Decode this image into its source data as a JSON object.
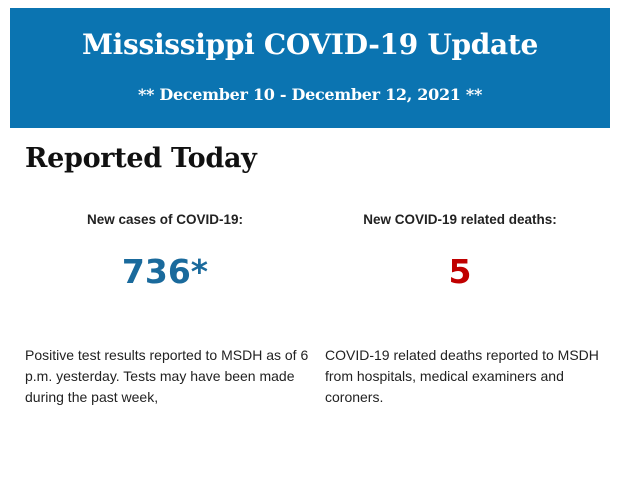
{
  "banner": {
    "title": "Mississippi COVID-19 Update",
    "subtitle": "** December 10 - December 12, 2021 **",
    "background_color": "#0b74b1"
  },
  "section_heading": "Reported Today",
  "cases": {
    "label": "New cases of COVID-19:",
    "value": "736*",
    "color": "#1a6a9c",
    "description": "Positive test results reported to MSDH as of 6 p.m. yesterday. Tests may have been made during the past week,"
  },
  "deaths": {
    "label": "New COVID-19 related deaths:",
    "value": "5",
    "color": "#c00000",
    "description": "COVID-19 related deaths reported to MSDH from hospitals, medical examiners and coroners."
  }
}
